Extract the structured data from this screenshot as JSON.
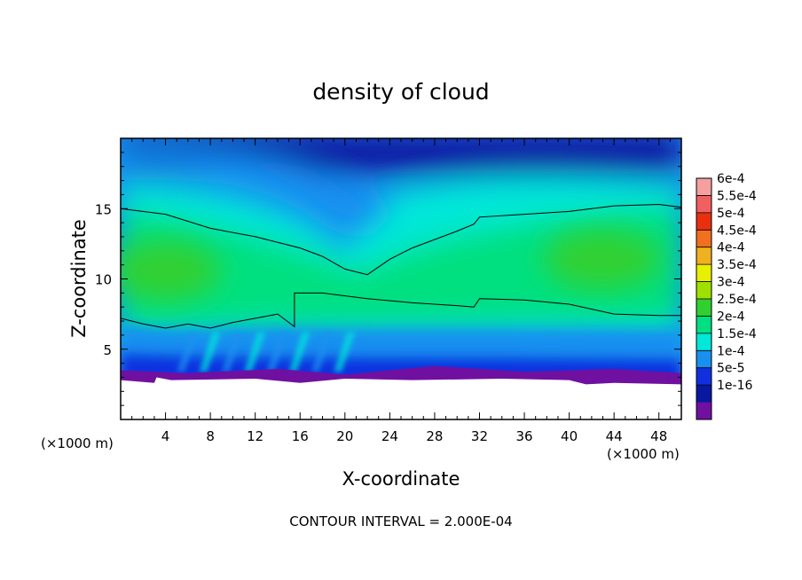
{
  "chart_data": {
    "type": "heatmap",
    "title": "density of cloud",
    "xlabel": "X-coordinate",
    "ylabel": "Z-coordinate",
    "x_unit": "(×1000 m)",
    "z_unit": "(×1000 m)",
    "xlim": [
      0,
      50
    ],
    "ylim": [
      0,
      20
    ],
    "x_ticks": [
      "4",
      "8",
      "12",
      "16",
      "20",
      "24",
      "28",
      "32",
      "36",
      "40",
      "44",
      "48"
    ],
    "x_tick_values": [
      4,
      8,
      12,
      16,
      20,
      24,
      28,
      32,
      36,
      40,
      44,
      48
    ],
    "y_ticks": [
      "5",
      "10",
      "15"
    ],
    "y_tick_values": [
      5,
      10,
      15
    ],
    "colorbar": {
      "labels": [
        "6e-4",
        "5.5e-4",
        "5e-4",
        "4.5e-4",
        "4e-4",
        "3.5e-4",
        "3e-4",
        "2.5e-4",
        "2e-4",
        "1.5e-4",
        "1e-4",
        "5e-5",
        "1e-16"
      ],
      "colors": [
        "#f5a0a0",
        "#f06060",
        "#e83010",
        "#f07020",
        "#f0b020",
        "#e8f000",
        "#a0e000",
        "#30d030",
        "#00e080",
        "#00e8d8",
        "#1890f0",
        "#1030e0",
        "#0818a0",
        "#7010a0"
      ]
    },
    "contour_interval_text": "CONTOUR INTERVAL = 2.000E-04",
    "contour_level": 0.0002,
    "contour_upper_z": [
      [
        0,
        15.0
      ],
      [
        4,
        14.6
      ],
      [
        8,
        13.6
      ],
      [
        12,
        13.0
      ],
      [
        16,
        12.2
      ],
      [
        18,
        11.6
      ],
      [
        20,
        10.7
      ],
      [
        22,
        10.3
      ],
      [
        24,
        11.4
      ],
      [
        26,
        12.2
      ],
      [
        28,
        12.8
      ],
      [
        30,
        13.4
      ],
      [
        31.5,
        13.9
      ],
      [
        32,
        14.4
      ],
      [
        36,
        14.6
      ],
      [
        40,
        14.8
      ],
      [
        44,
        15.2
      ],
      [
        48,
        15.3
      ],
      [
        50,
        15.1
      ]
    ],
    "contour_lower_z": [
      [
        0,
        7.2
      ],
      [
        2,
        6.8
      ],
      [
        4,
        6.5
      ],
      [
        6,
        6.8
      ],
      [
        8,
        6.5
      ],
      [
        10,
        6.9
      ],
      [
        12,
        7.2
      ],
      [
        14,
        7.5
      ],
      [
        15.5,
        6.6
      ],
      [
        15.5,
        9.0
      ],
      [
        18,
        9.0
      ],
      [
        22,
        8.6
      ],
      [
        26,
        8.3
      ],
      [
        30,
        8.1
      ],
      [
        31.5,
        8.0
      ],
      [
        32,
        8.6
      ],
      [
        36,
        8.5
      ],
      [
        40,
        8.2
      ],
      [
        44,
        7.5
      ],
      [
        48,
        7.4
      ],
      [
        50,
        7.4
      ]
    ],
    "no_data_below_z": 2.8
  }
}
